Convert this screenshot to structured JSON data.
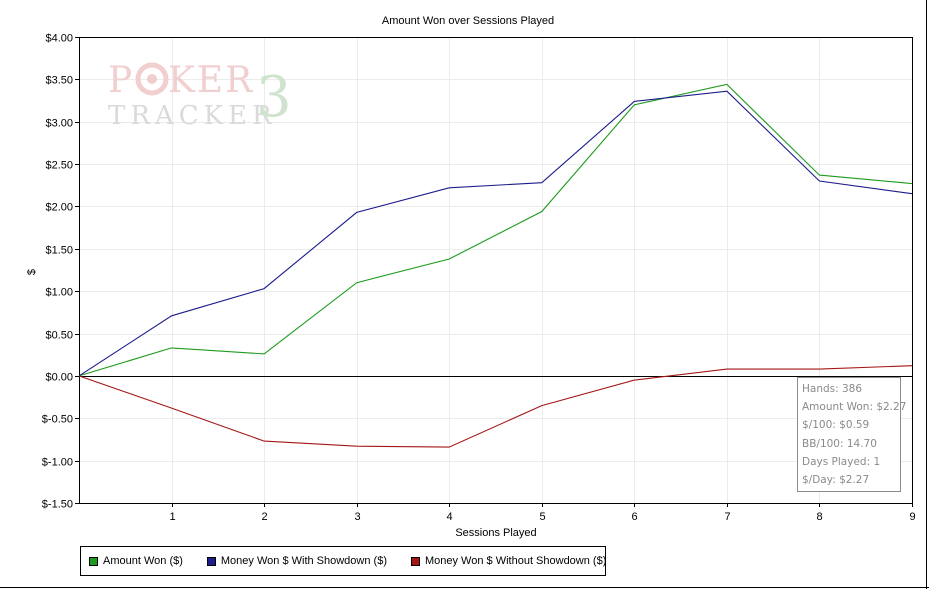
{
  "chart_data": {
    "type": "line",
    "title": "Amount Won over Sessions Played",
    "xlabel": "Sessions Played",
    "ylabel": "$",
    "x": [
      0,
      1,
      2,
      3,
      4,
      5,
      6,
      7,
      8,
      9
    ],
    "x_ticks": [
      1,
      2,
      3,
      4,
      5,
      6,
      7,
      8,
      9
    ],
    "xlim": [
      0,
      9
    ],
    "ylim": [
      -1.5,
      4.0
    ],
    "y_ticks": [
      4.0,
      3.5,
      3.0,
      2.5,
      2.0,
      1.5,
      1.0,
      0.5,
      0.0,
      -0.5,
      -1.0,
      -1.5
    ],
    "y_tick_labels": [
      "$4.00",
      "$3.50",
      "$3.00",
      "$2.50",
      "$2.00",
      "$1.50",
      "$1.00",
      "$0.50",
      "$0.00",
      "$-0.50",
      "$-1.00",
      "$-1.50"
    ],
    "grid": true,
    "legend": "bottom-left",
    "series": [
      {
        "name": "Amount Won ($)",
        "color": "#1e9b1e",
        "values": [
          0,
          0.33,
          0.26,
          1.1,
          1.38,
          1.94,
          3.2,
          3.44,
          2.37,
          2.27
        ]
      },
      {
        "name": "Money Won $ With Showdown ($)",
        "color": "#1c1c8c",
        "values": [
          0,
          0.71,
          1.03,
          1.93,
          2.22,
          2.28,
          3.24,
          3.36,
          2.3,
          2.15
        ]
      },
      {
        "name": "Money Won $ Without Showdown ($)",
        "color": "#a51616",
        "values": [
          0,
          -0.38,
          -0.77,
          -0.83,
          -0.84,
          -0.35,
          -0.05,
          0.08,
          0.08,
          0.12
        ]
      }
    ]
  },
  "stats": [
    "Hands: 386",
    "Amount Won: $2.27",
    "$/100: $0.59",
    "BB/100: 14.70",
    "Days Played: 1",
    "$/Day: $2.27"
  ],
  "watermark": {
    "line1": "POKER",
    "line2": "TRACKER",
    "mark": "3"
  }
}
